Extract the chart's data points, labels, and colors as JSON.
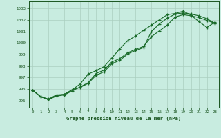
{
  "title": "Graphe pression niveau de la mer (hPa)",
  "bg_color": "#c8ece0",
  "grid_color": "#aacfbf",
  "line_color": "#1a6b2a",
  "tick_color": "#1a5520",
  "xlim": [
    -0.5,
    23.5
  ],
  "ylim": [
    994.4,
    1003.6
  ],
  "yticks": [
    995,
    996,
    997,
    998,
    999,
    1000,
    1001,
    1002,
    1003
  ],
  "xticks": [
    0,
    1,
    2,
    3,
    4,
    5,
    6,
    7,
    8,
    9,
    10,
    11,
    12,
    13,
    14,
    15,
    16,
    17,
    18,
    19,
    20,
    21,
    22,
    23
  ],
  "series1": [
    995.9,
    995.35,
    995.1,
    995.4,
    995.5,
    995.85,
    996.2,
    996.55,
    997.35,
    997.65,
    998.35,
    998.65,
    999.15,
    999.45,
    999.7,
    1000.55,
    1001.05,
    1001.55,
    1002.25,
    1002.45,
    1002.35,
    1002.2,
    1001.95,
    1001.7
  ],
  "series2": [
    995.9,
    995.35,
    995.15,
    995.5,
    995.55,
    995.95,
    996.45,
    997.3,
    997.6,
    997.95,
    998.7,
    999.5,
    1000.2,
    1000.6,
    1001.1,
    1001.55,
    1002.0,
    1002.45,
    1002.55,
    1002.75,
    1002.4,
    1001.85,
    1001.35,
    1001.8
  ],
  "series3": [
    995.9,
    995.35,
    995.1,
    995.45,
    995.55,
    995.95,
    996.15,
    996.5,
    997.2,
    997.5,
    998.2,
    998.5,
    999.05,
    999.35,
    999.6,
    1001.0,
    1001.65,
    1002.15,
    1002.5,
    1002.6,
    1002.5,
    1002.35,
    1002.1,
    1001.7
  ]
}
